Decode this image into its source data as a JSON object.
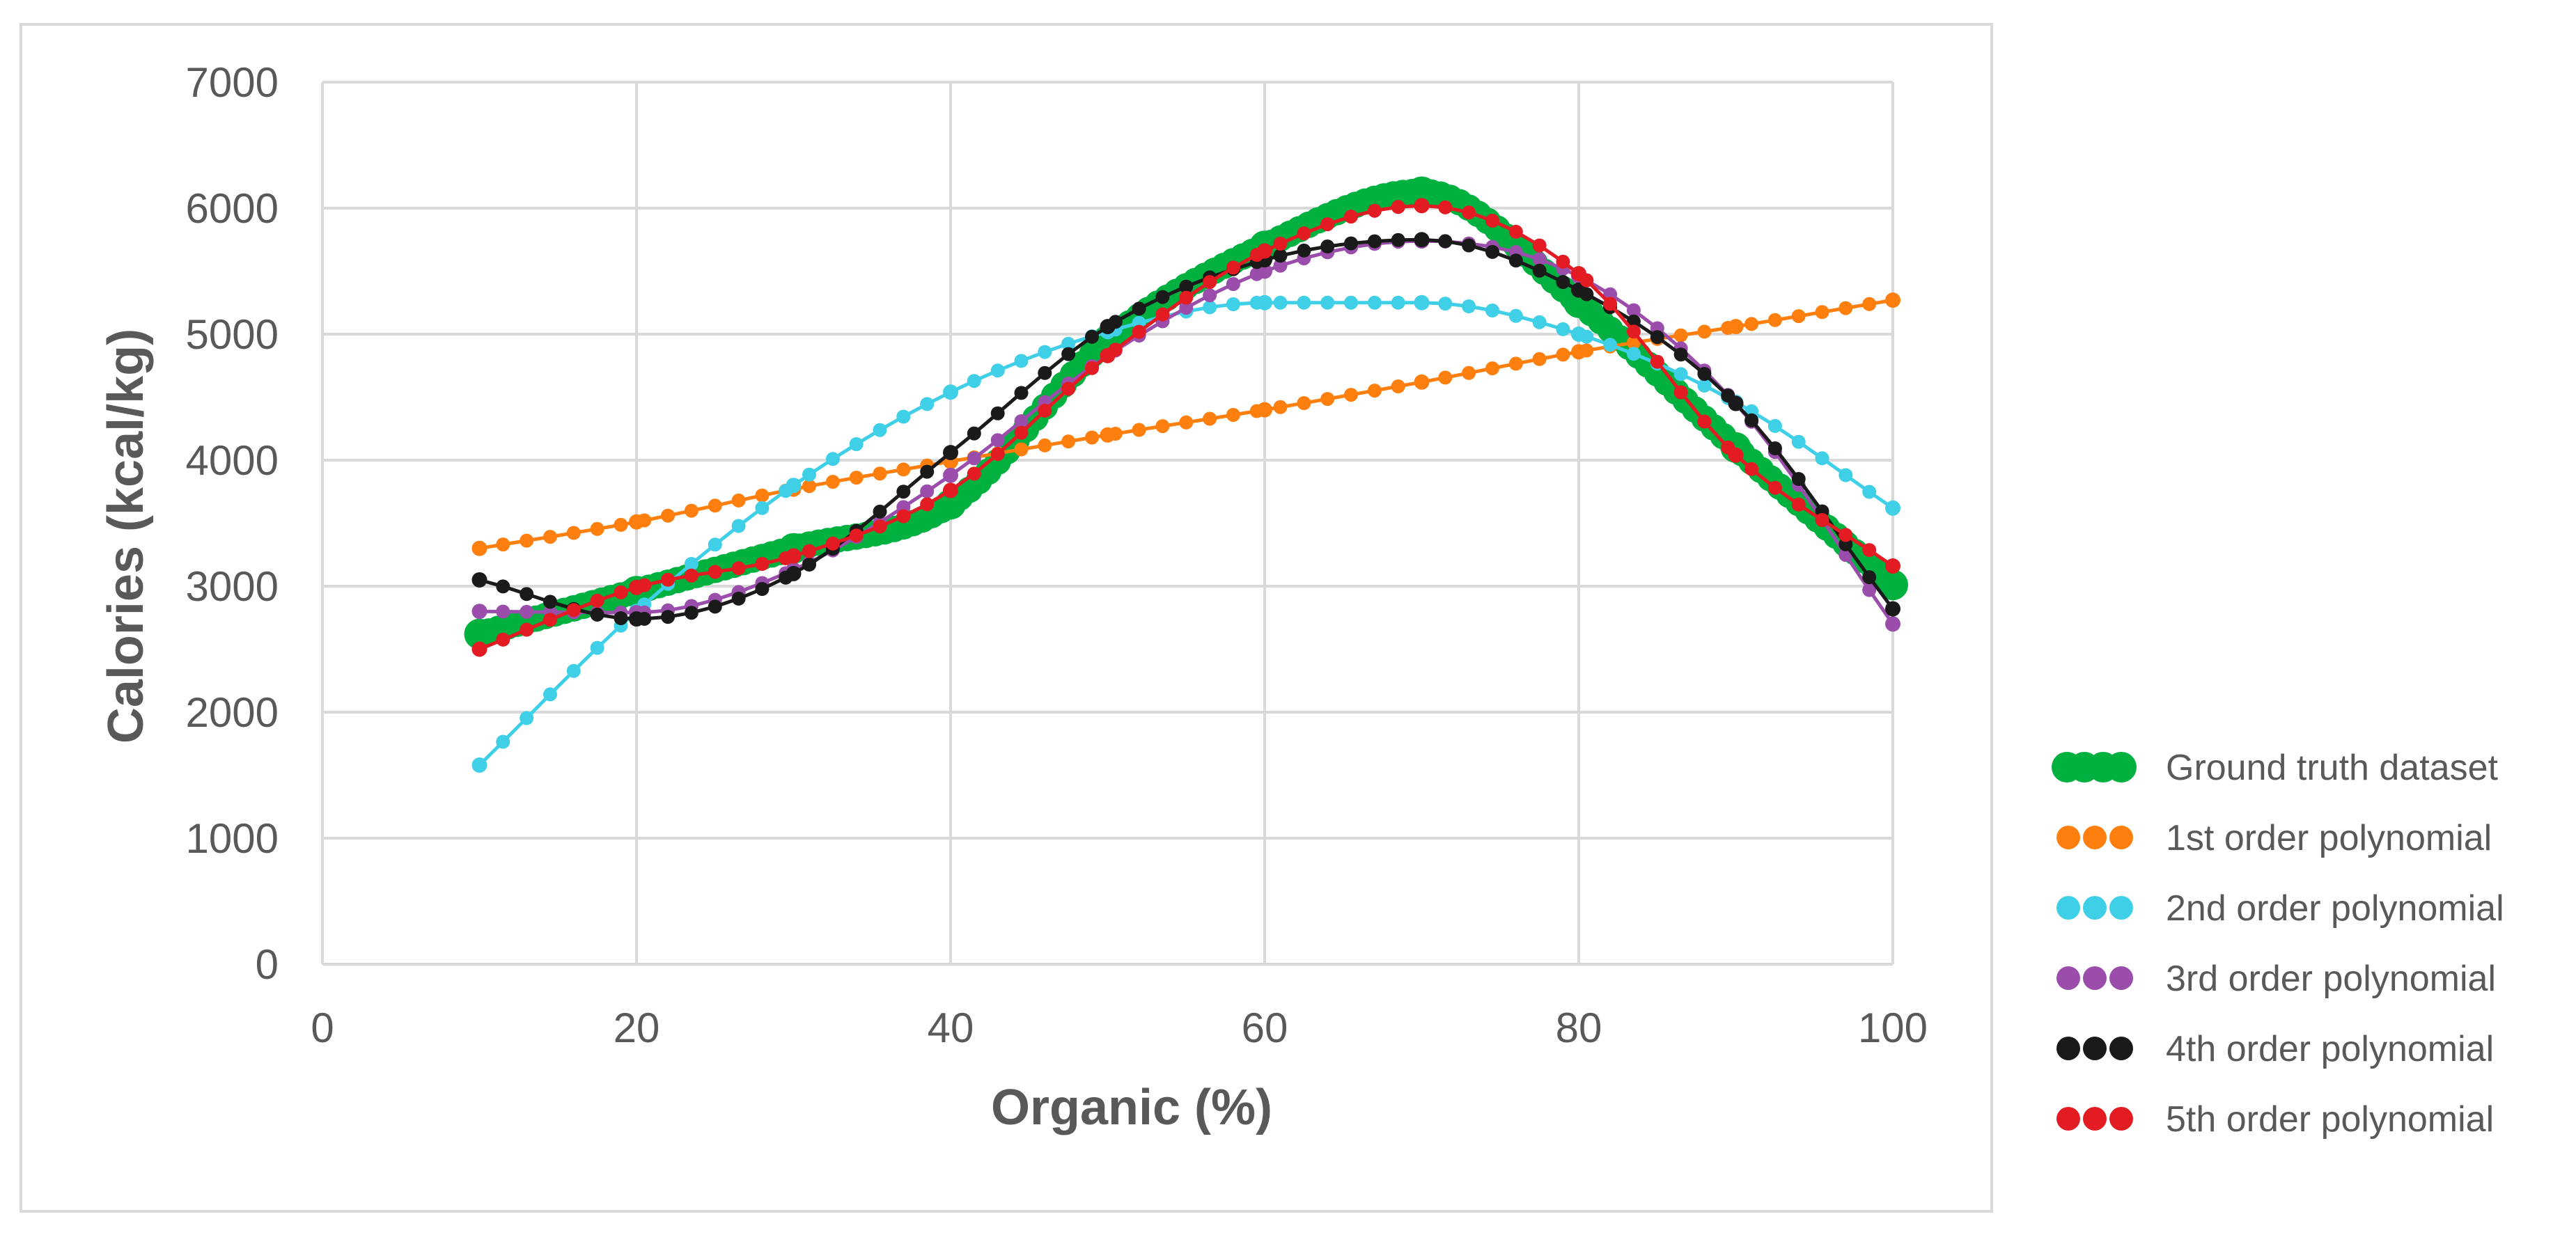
{
  "chart_data": {
    "type": "line",
    "title": "",
    "xlabel": "Organic (%)",
    "ylabel": "Calories (kcal/kg)",
    "xlim": [
      0,
      100
    ],
    "ylim": [
      0,
      7000
    ],
    "xticks": [
      "0",
      "20",
      "40",
      "60",
      "80",
      "100"
    ],
    "yticks": [
      "0",
      "1000",
      "2000",
      "3000",
      "4000",
      "5000",
      "6000",
      "7000"
    ],
    "grid": true,
    "legend_position": "right",
    "x": [
      10,
      20,
      30,
      40,
      50,
      60,
      70,
      80,
      90,
      100
    ],
    "series": [
      {
        "name": "Ground truth dataset",
        "color": "#00b140",
        "style": "thick",
        "values": [
          2620,
          2960,
          3300,
          3650,
          4950,
          5700,
          6130,
          5250,
          4100,
          3010
        ]
      },
      {
        "name": "1st order polynomial",
        "color": "#ff7f0e",
        "style": "dotted",
        "values": [
          3300,
          3510,
          3770,
          3990,
          4200,
          4400,
          4620,
          4860,
          5060,
          5270
        ]
      },
      {
        "name": "2nd order polynomial",
        "color": "#3fd0e8",
        "style": "dotted",
        "values": [
          1580,
          2800,
          3800,
          4540,
          5020,
          5250,
          5250,
          5000,
          4460,
          3620
        ]
      },
      {
        "name": "3rd order polynomial",
        "color": "#9b4dab",
        "style": "dotted",
        "values": [
          2800,
          2790,
          3130,
          3880,
          4830,
          5500,
          5740,
          5460,
          4450,
          2700
        ]
      },
      {
        "name": "4th order polynomial",
        "color": "#1a1a1a",
        "style": "dotted",
        "values": [
          3050,
          2740,
          3100,
          4060,
          5060,
          5590,
          5750,
          5350,
          4450,
          2820
        ]
      },
      {
        "name": "5th order polynomial",
        "color": "#e31b23",
        "style": "dotted",
        "values": [
          2500,
          2990,
          3240,
          3760,
          4830,
          5660,
          6020,
          5480,
          4040,
          3160
        ]
      }
    ]
  }
}
